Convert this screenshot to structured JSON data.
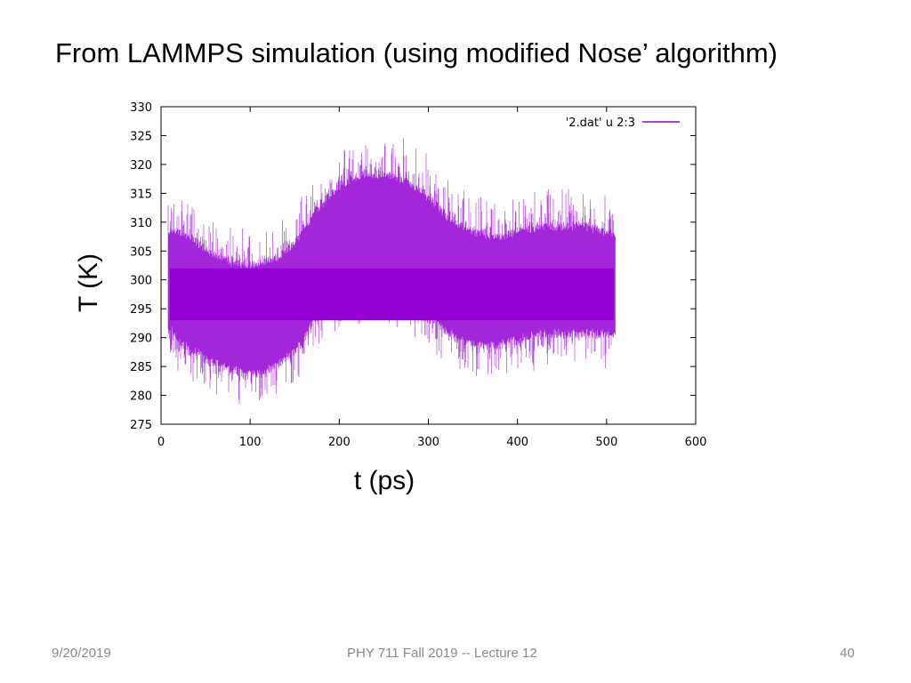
{
  "slide": {
    "title": "From LAMMPS simulation (using modified Nose’ algorithm)",
    "footer_date": "9/20/2019",
    "footer_course": "PHY 711  Fall 2019 -- Lecture 12",
    "page_number": "40"
  },
  "chart_data": {
    "type": "line",
    "xlabel": "t (ps)",
    "ylabel": "T (K)",
    "xlim": [
      0,
      600
    ],
    "ylim": [
      275,
      330
    ],
    "xticks": [
      0,
      100,
      200,
      300,
      400,
      500,
      600
    ],
    "yticks": [
      275,
      280,
      285,
      290,
      295,
      300,
      305,
      310,
      315,
      320,
      325,
      330
    ],
    "grid": false,
    "legend_position": "top-right",
    "series": [
      {
        "name": "'2.dat' u 2:3",
        "color": "#9400d3",
        "x_range": [
          8,
          510
        ],
        "envelope_x": [
          10,
          25,
          50,
          75,
          100,
          125,
          150,
          175,
          200,
          225,
          250,
          275,
          300,
          325,
          350,
          375,
          400,
          425,
          450,
          475,
          500,
          510
        ],
        "envelope_lower": [
          291,
          288,
          286,
          284,
          283,
          284,
          287,
          293,
          297,
          298,
          298,
          296,
          293,
          290,
          288,
          288,
          289,
          290,
          290,
          290,
          290,
          290
        ],
        "envelope_upper": [
          309,
          309,
          306,
          304,
          303,
          304,
          307,
          313,
          317,
          319,
          319,
          318,
          315,
          311,
          309,
          308,
          309,
          310,
          310,
          310,
          309,
          308
        ],
        "max_value": 327.5,
        "min_value": 277.8
      }
    ]
  }
}
